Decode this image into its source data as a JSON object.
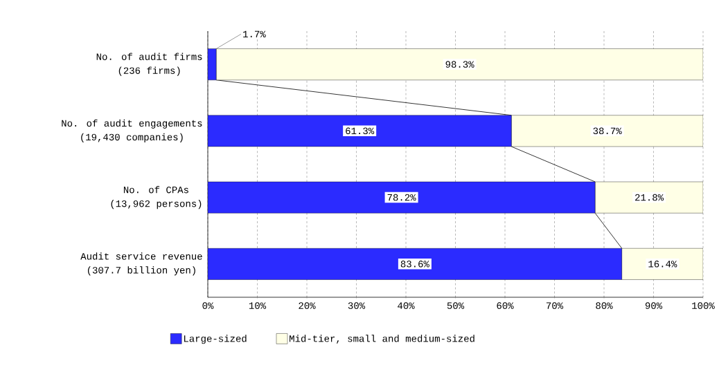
{
  "chart_data": {
    "type": "bar",
    "orientation": "horizontal",
    "stacked": true,
    "categories": [
      "No. of audit firms (236 firms)",
      "No. of audit engagements (19,430 companies)",
      "No. of CPAs (13,962 persons)",
      "Audit service revenue (307.7 billion yen)"
    ],
    "series": [
      {
        "name": "Large-sized",
        "color": "#2b2bff",
        "values": [
          1.7,
          61.3,
          78.2,
          83.6
        ],
        "value_labels": [
          "1.7%",
          "61.3%",
          "78.2%",
          "83.6%"
        ]
      },
      {
        "name": "Mid-tier, small and medium-sized",
        "color": "#ffffe6",
        "values": [
          98.3,
          38.7,
          21.8,
          16.4
        ],
        "value_labels": [
          "98.3%",
          "38.7%",
          "21.8%",
          "16.4%"
        ]
      }
    ],
    "xlim": [
      0,
      100
    ],
    "xticks": [
      {
        "value": 0,
        "label": "0%"
      },
      {
        "value": 10,
        "label": "10%"
      },
      {
        "value": 20,
        "label": "20%"
      },
      {
        "value": 30,
        "label": "30%"
      },
      {
        "value": 40,
        "label": "40%"
      },
      {
        "value": 50,
        "label": "50%"
      },
      {
        "value": 60,
        "label": "60%"
      },
      {
        "value": 70,
        "label": "70%"
      },
      {
        "value": 80,
        "label": "80%"
      },
      {
        "value": 90,
        "label": "90%"
      },
      {
        "value": 100,
        "label": "100%"
      }
    ],
    "grid": "x",
    "legend": "bottom"
  }
}
